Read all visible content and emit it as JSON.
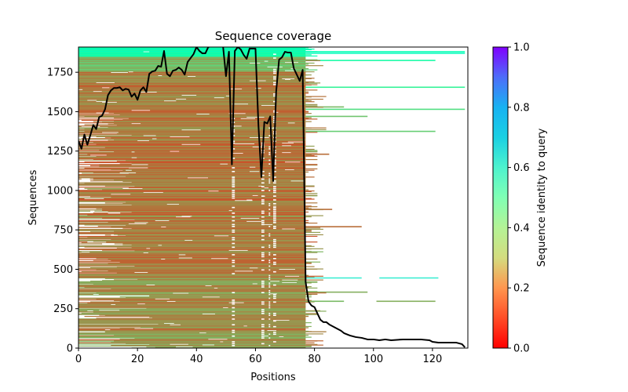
{
  "chart_data": {
    "type": "heatmap",
    "title": "Sequence coverage",
    "xlabel": "Positions",
    "ylabel": "Sequences",
    "xlim": [
      0,
      132
    ],
    "ylim": [
      0,
      1910
    ],
    "xticks": [
      0,
      20,
      40,
      60,
      80,
      100,
      120
    ],
    "yticks": [
      0,
      250,
      500,
      750,
      1000,
      1250,
      1500,
      1750
    ],
    "grid": false,
    "colorbar": {
      "label": "Sequence identity to query",
      "range": [
        0.0,
        1.0
      ],
      "ticks": [
        0.0,
        0.2,
        0.4,
        0.6,
        0.8,
        1.0
      ],
      "colormap": "rainbow_r",
      "placement": "right"
    },
    "heatmap_summary": {
      "total_sequences": 1910,
      "main_span_positions": [
        0,
        77
      ],
      "identity_bands": [
        {
          "rows": [
            0,
            445
          ],
          "identity_range": [
            0.12,
            0.26
          ]
        },
        {
          "rows": [
            445,
            448
          ],
          "identity_range": [
            0.62,
            0.62
          ]
        },
        {
          "rows": [
            448,
            1750
          ],
          "identity_range": [
            0.1,
            0.22
          ]
        },
        {
          "rows": [
            1750,
            1850
          ],
          "identity_range": [
            0.2,
            0.34
          ]
        },
        {
          "rows": [
            1850,
            1910
          ],
          "identity_range": [
            0.42,
            0.52
          ]
        }
      ],
      "long_tail_rows": [
        {
          "row": 445,
          "start": 77,
          "end": 96,
          "identity": 0.62
        },
        {
          "row": 445,
          "start": 102,
          "end": 122,
          "identity": 0.62
        },
        {
          "row": 355,
          "start": 77,
          "end": 98,
          "identity": 0.24
        },
        {
          "row": 297,
          "start": 77,
          "end": 90,
          "identity": 0.26
        },
        {
          "row": 297,
          "start": 101,
          "end": 121,
          "identity": 0.24
        },
        {
          "row": 1880,
          "start": 77,
          "end": 131,
          "identity": 0.5
        },
        {
          "row": 1870,
          "start": 77,
          "end": 131,
          "identity": 0.55
        },
        {
          "row": 1825,
          "start": 77,
          "end": 121,
          "identity": 0.45
        },
        {
          "row": 1655,
          "start": 77,
          "end": 131,
          "identity": 0.4
        },
        {
          "row": 1515,
          "start": 77,
          "end": 131,
          "identity": 0.34
        },
        {
          "row": 1375,
          "start": 77,
          "end": 121,
          "identity": 0.3
        },
        {
          "row": 1470,
          "start": 77,
          "end": 98,
          "identity": 0.28
        },
        {
          "row": 1530,
          "start": 77,
          "end": 90,
          "identity": 0.26
        },
        {
          "row": 1230,
          "start": 77,
          "end": 85,
          "identity": 0.14
        },
        {
          "row": 880,
          "start": 77,
          "end": 86,
          "identity": 0.14
        },
        {
          "row": 770,
          "start": 77,
          "end": 96,
          "identity": 0.14
        }
      ]
    },
    "coverage_line": {
      "name": "coverage",
      "color": "#000000",
      "x": [
        0,
        1,
        2,
        3,
        4,
        5,
        6,
        7,
        8,
        9,
        10,
        11,
        12,
        13,
        14,
        15,
        16,
        17,
        18,
        19,
        20,
        21,
        22,
        23,
        24,
        25,
        26,
        27,
        28,
        29,
        30,
        31,
        32,
        33,
        34,
        35,
        36,
        37,
        38,
        39,
        40,
        41,
        42,
        43,
        44,
        45,
        46,
        47,
        48,
        49,
        50,
        51,
        52,
        53,
        54,
        55,
        56,
        57,
        58,
        59,
        60,
        61,
        62,
        63,
        64,
        65,
        66,
        67,
        68,
        69,
        70,
        71,
        72,
        73,
        74,
        75,
        76,
        77,
        78,
        79,
        80,
        81,
        82,
        83,
        84,
        85,
        87,
        89,
        90,
        92,
        94,
        96,
        98,
        100,
        102,
        104,
        106,
        110,
        116,
        119,
        120,
        122,
        128,
        130,
        131
      ],
      "y": [
        1315,
        1265,
        1355,
        1290,
        1350,
        1415,
        1390,
        1465,
        1475,
        1515,
        1605,
        1635,
        1650,
        1650,
        1655,
        1635,
        1645,
        1640,
        1595,
        1615,
        1575,
        1635,
        1655,
        1625,
        1740,
        1755,
        1760,
        1790,
        1785,
        1885,
        1740,
        1725,
        1760,
        1765,
        1780,
        1765,
        1735,
        1815,
        1840,
        1865,
        1910,
        1885,
        1870,
        1870,
        1910,
        1915,
        1915,
        1915,
        1915,
        1915,
        1725,
        1880,
        1165,
        1885,
        1910,
        1895,
        1860,
        1835,
        1900,
        1900,
        1900,
        1415,
        1085,
        1435,
        1425,
        1470,
        1060,
        1625,
        1830,
        1845,
        1880,
        1875,
        1875,
        1775,
        1735,
        1695,
        1765,
        420,
        295,
        270,
        260,
        220,
        180,
        165,
        165,
        150,
        130,
        110,
        95,
        80,
        70,
        65,
        55,
        55,
        50,
        55,
        50,
        55,
        55,
        50,
        40,
        35,
        35,
        25,
        5
      ]
    }
  }
}
